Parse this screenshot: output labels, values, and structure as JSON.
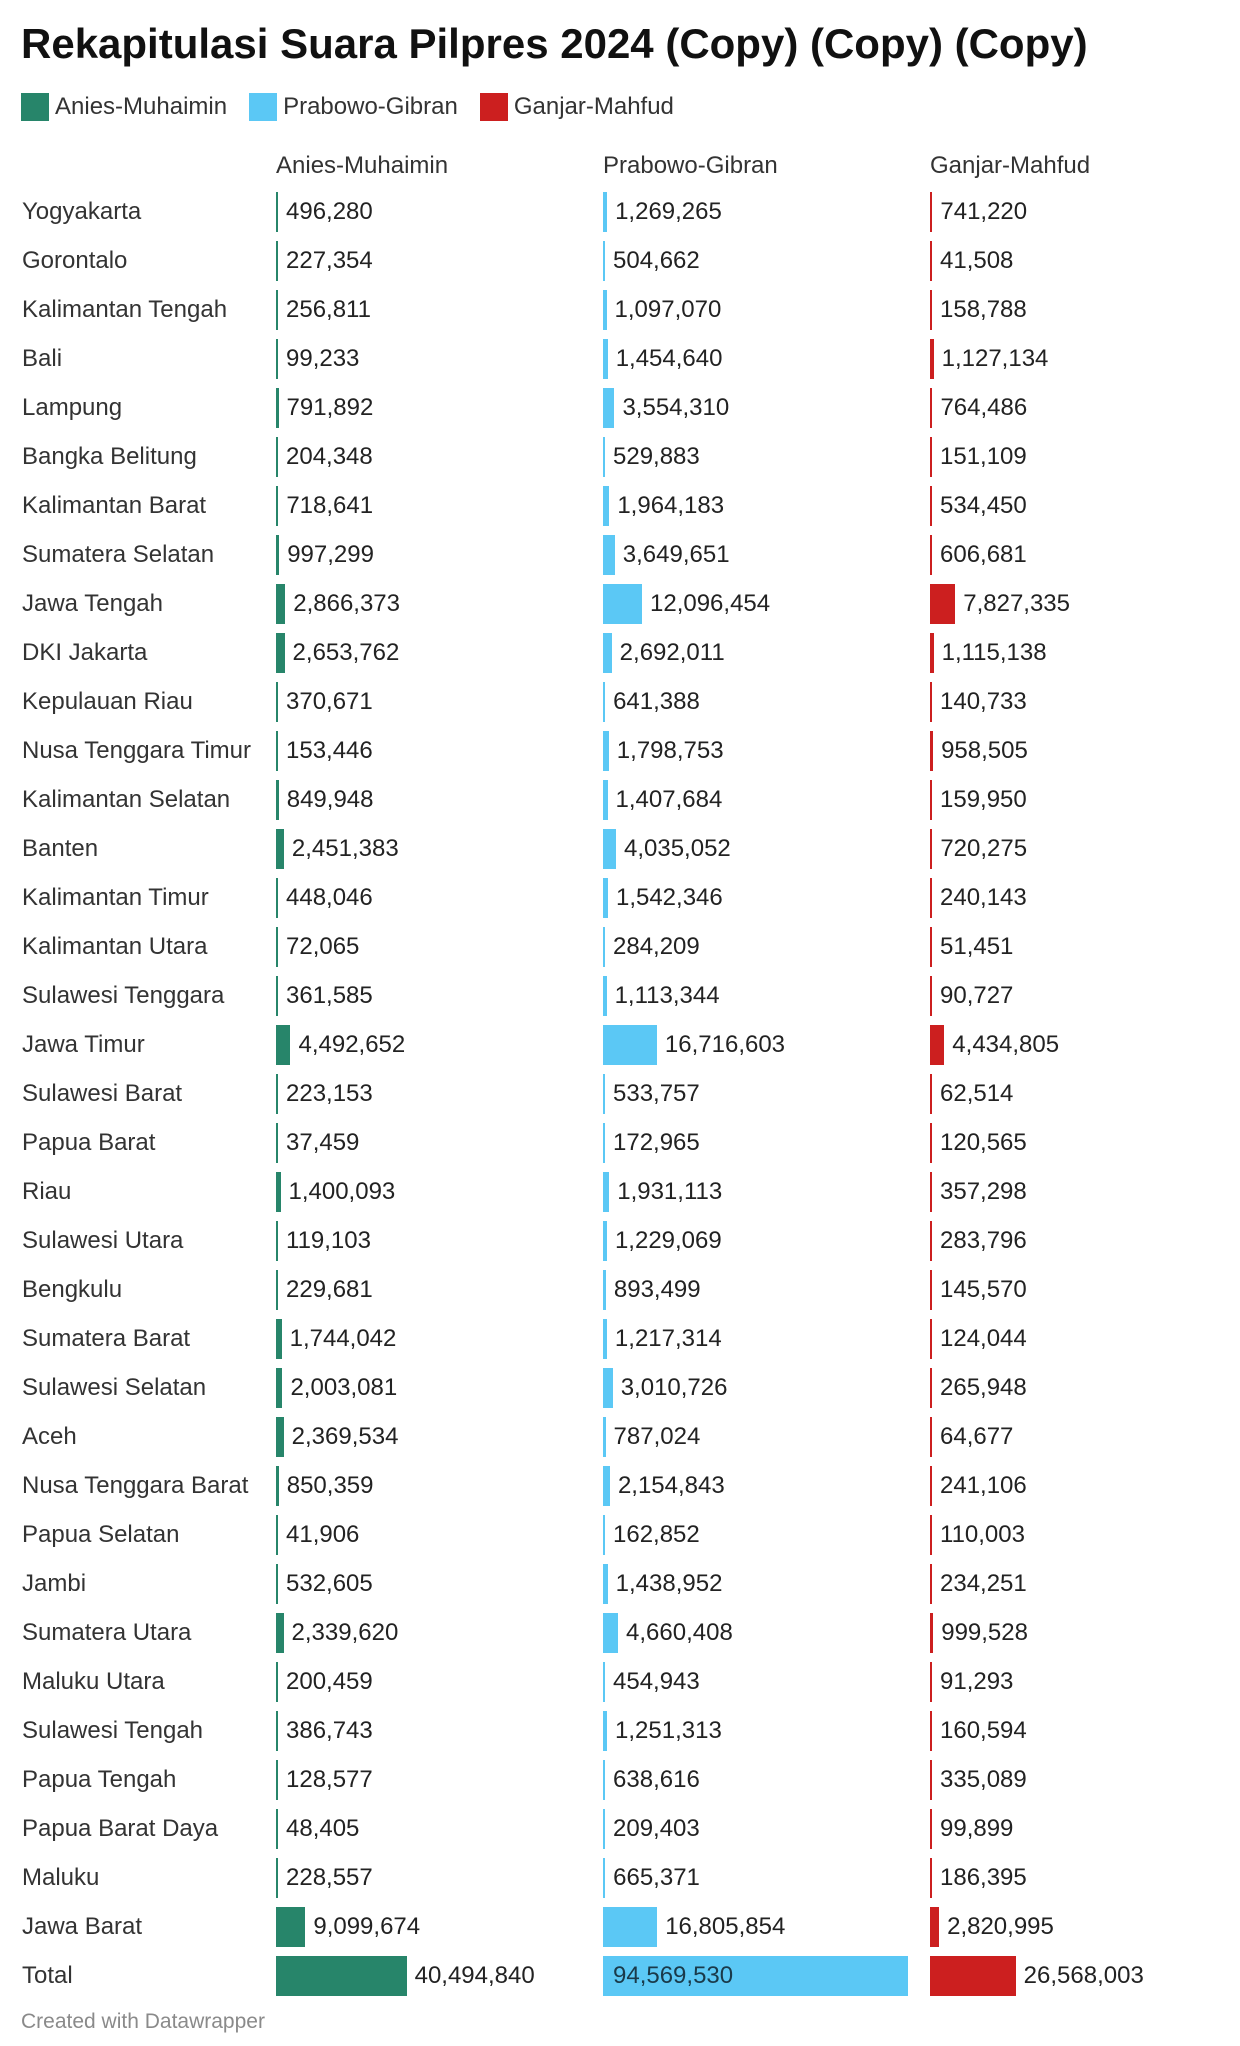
{
  "title": "Rekapitulasi Suara Pilpres 2024 (Copy) (Copy) (Copy)",
  "footer": "Created with Datawrapper",
  "colors": {
    "Anies-Muhaimin": "#27856a",
    "Prabowo-Gibran": "#5bc8f5",
    "Ganjar-Mahfud": "#cc1f1f"
  },
  "chart_data": {
    "type": "bar",
    "xlabel": "",
    "ylabel": "",
    "categories": [
      "Yogyakarta",
      "Gorontalo",
      "Kalimantan Tengah",
      "Bali",
      "Lampung",
      "Bangka Belitung",
      "Kalimantan Barat",
      "Sumatera Selatan",
      "Jawa Tengah",
      "DKI Jakarta",
      "Kepulauan Riau",
      "Nusa Tenggara Timur",
      "Kalimantan Selatan",
      "Banten",
      "Kalimantan Timur",
      "Kalimantan Utara",
      "Sulawesi Tenggara",
      "Jawa Timur",
      "Sulawesi Barat",
      "Papua Barat",
      "Riau",
      "Sulawesi Utara",
      "Bengkulu",
      "Sumatera Barat",
      "Sulawesi Selatan",
      "Aceh",
      "Nusa Tenggara Barat",
      "Papua Selatan",
      "Jambi",
      "Sumatera Utara",
      "Maluku Utara",
      "Sulawesi Tengah",
      "Papua Tengah",
      "Papua Barat Daya",
      "Maluku",
      "Jawa Barat",
      "Total"
    ],
    "series": [
      {
        "name": "Anies-Muhaimin",
        "values": [
          496280,
          227354,
          256811,
          99233,
          791892,
          204348,
          718641,
          997299,
          2866373,
          2653762,
          370671,
          153446,
          849948,
          2451383,
          448046,
          72065,
          361585,
          4492652,
          223153,
          37459,
          1400093,
          119103,
          229681,
          1744042,
          2003081,
          2369534,
          850359,
          41906,
          532605,
          2339620,
          200459,
          386743,
          128577,
          48405,
          228557,
          9099674,
          40494840
        ]
      },
      {
        "name": "Prabowo-Gibran",
        "values": [
          1269265,
          504662,
          1097070,
          1454640,
          3554310,
          529883,
          1964183,
          3649651,
          12096454,
          2692011,
          641388,
          1798753,
          1407684,
          4035052,
          1542346,
          284209,
          1113344,
          16716603,
          533757,
          172965,
          1931113,
          1229069,
          893499,
          1217314,
          3010726,
          787024,
          2154843,
          162852,
          1438952,
          4660408,
          454943,
          1251313,
          638616,
          209403,
          665371,
          16805854,
          94569530
        ]
      },
      {
        "name": "Ganjar-Mahfud",
        "values": [
          741220,
          41508,
          158788,
          1127134,
          764486,
          151109,
          534450,
          606681,
          7827335,
          1115138,
          140733,
          958505,
          159950,
          720275,
          240143,
          51451,
          90727,
          4434805,
          62514,
          120565,
          357298,
          283796,
          145570,
          124044,
          265948,
          64677,
          241106,
          110003,
          234251,
          999528,
          91293,
          160594,
          335089,
          99899,
          186395,
          2820995,
          26568003
        ]
      }
    ]
  }
}
